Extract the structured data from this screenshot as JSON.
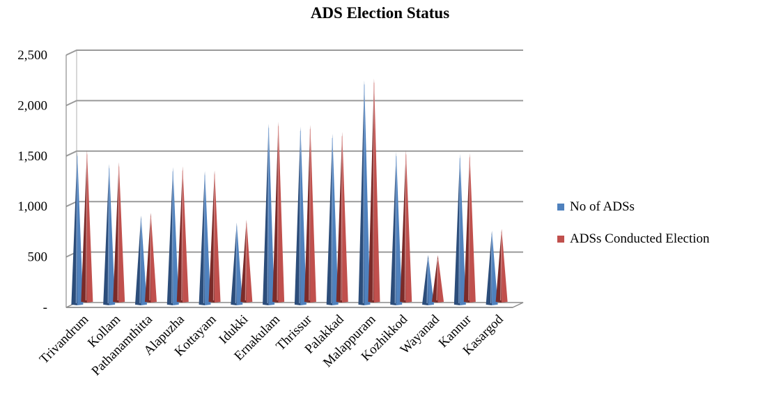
{
  "chart_data": {
    "type": "bar",
    "title": "ADS Election Status",
    "xlabel": "",
    "ylabel": "",
    "ylim": [
      0,
      2500
    ],
    "yticks": [
      {
        "value": 0,
        "label": "-"
      },
      {
        "value": 500,
        "label": "500"
      },
      {
        "value": 1000,
        "label": "1,000"
      },
      {
        "value": 1500,
        "label": "1,500"
      },
      {
        "value": 2000,
        "label": "2,000"
      },
      {
        "value": 2500,
        "label": "2,500"
      }
    ],
    "grid": true,
    "legend_position": "right",
    "categories": [
      "Trivandrum",
      "Kollam",
      "Pathanamthitta",
      "Alapuzha",
      "Kottayam",
      "Idukki",
      "Ernakulam",
      "Thrissur",
      "Palakkad",
      "Malappuram",
      "Kozhikkod",
      "Wayanad",
      "Kannur",
      "Kasargod"
    ],
    "series": [
      {
        "name": "No of ADSs",
        "color": "#4f81bd",
        "values": [
          1540,
          1420,
          910,
          1390,
          1350,
          840,
          1820,
          1790,
          1720,
          2250,
          1540,
          520,
          1520,
          760
        ]
      },
      {
        "name": "ADSs Conducted Election",
        "color": "#c0504d",
        "values": [
          1530,
          1410,
          910,
          1370,
          1330,
          840,
          1810,
          1780,
          1710,
          2240,
          1530,
          490,
          1500,
          750
        ]
      }
    ]
  }
}
